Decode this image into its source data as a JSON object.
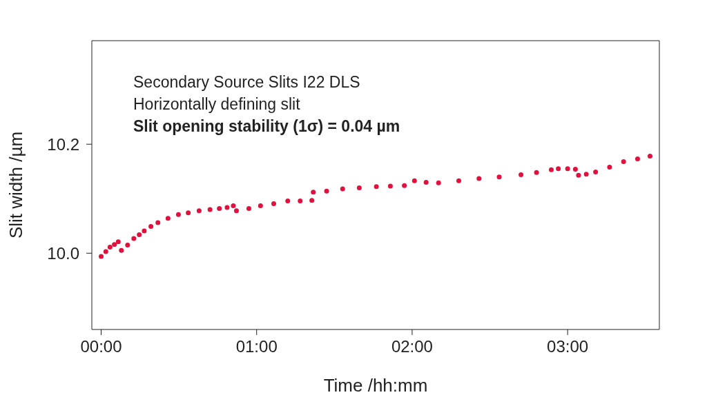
{
  "chart_data": {
    "type": "scatter",
    "xlabel": "Time /hh:mm",
    "ylabel": "Slit width /µm",
    "annotations": [
      "Secondary Source Slits I22 DLS",
      "Horizontally defining slit",
      "Slit opening stability (1σ) = 0.04 µm"
    ],
    "x": [
      0,
      0.03,
      0.057,
      0.085,
      0.11,
      0.13,
      0.17,
      0.21,
      0.245,
      0.277,
      0.32,
      0.365,
      0.43,
      0.497,
      0.56,
      0.63,
      0.7,
      0.76,
      0.81,
      0.85,
      0.87,
      0.95,
      1.025,
      1.11,
      1.2,
      1.28,
      1.355,
      1.364,
      1.45,
      1.553,
      1.66,
      1.77,
      1.86,
      1.95,
      2.015,
      2.09,
      2.17,
      2.3,
      2.43,
      2.56,
      2.7,
      2.8,
      2.895,
      2.94,
      3.0,
      3.05,
      3.07,
      3.12,
      3.18,
      3.27,
      3.36,
      3.45,
      3.53
    ],
    "series": [
      {
        "color": "#e0103f",
        "values": [
          9.994,
          10.003,
          10.011,
          10.016,
          10.021,
          10.005,
          10.015,
          10.027,
          10.034,
          10.041,
          10.049,
          10.056,
          10.064,
          10.071,
          10.074,
          10.078,
          10.08,
          10.082,
          10.084,
          10.087,
          10.078,
          10.082,
          10.087,
          10.091,
          10.096,
          10.096,
          10.097,
          10.112,
          10.114,
          10.118,
          10.12,
          10.122,
          10.123,
          10.124,
          10.133,
          10.13,
          10.129,
          10.133,
          10.137,
          10.14,
          10.144,
          10.148,
          10.153,
          10.155,
          10.155,
          10.154,
          10.143,
          10.145,
          10.149,
          10.158,
          10.168,
          10.173,
          10.178
        ]
      }
    ],
    "grid": false,
    "xlim": [
      -0.06,
      3.59
    ],
    "xticks": [
      {
        "value": 0,
        "label": "00:00"
      },
      {
        "value": 1,
        "label": "01:00"
      },
      {
        "value": 2,
        "label": "02:00"
      },
      {
        "value": 3,
        "label": "03:00"
      }
    ],
    "ylim": [
      9.86,
      10.39
    ],
    "yticks": [
      {
        "value": 10,
        "label": "10.0"
      },
      {
        "value": 10.2,
        "label": "10.2"
      }
    ]
  }
}
